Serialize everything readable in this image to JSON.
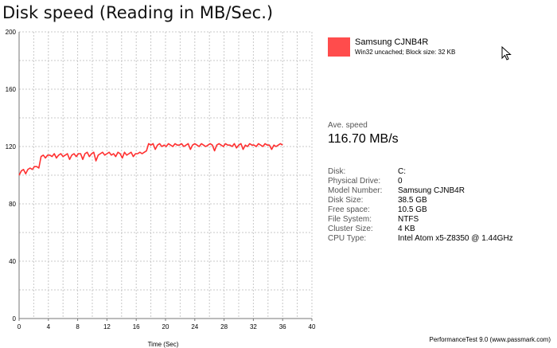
{
  "title": "Disk speed (Reading in MB/Sec.)",
  "legend": {
    "name": "Samsung CJNB4R",
    "description": "Win32 uncached; Block size: 32 KB",
    "color": "#ff4c4c"
  },
  "average": {
    "label": "Ave. speed",
    "value": "116.70 MB/s"
  },
  "info": [
    {
      "key": "Disk:",
      "value": "C:"
    },
    {
      "key": "Physical Drive:",
      "value": "0"
    },
    {
      "key": "Model Number:",
      "value": "Samsung CJNB4R"
    },
    {
      "key": "Disk Size:",
      "value": "38.5 GB"
    },
    {
      "key": "Free space:",
      "value": "10.5 GB"
    },
    {
      "key": "File System:",
      "value": "NTFS"
    },
    {
      "key": "Cluster Size:",
      "value": "4 KB"
    },
    {
      "key": "CPU Type:",
      "value": "Intel Atom x5-Z8350 @ 1.44GHz"
    }
  ],
  "footer": "PerformanceTest 9.0 (www.passmark.com)",
  "chart_data": {
    "type": "line",
    "xlabel": "Time (Sec)",
    "ylabel": "",
    "xlim": [
      0,
      40
    ],
    "ylim": [
      0,
      200
    ],
    "xticks": [
      0,
      2,
      4,
      6,
      8,
      10,
      12,
      14,
      16,
      18,
      20,
      22,
      24,
      26,
      28,
      30,
      32,
      34,
      36,
      38,
      40
    ],
    "xticklabels": [
      "0",
      "4",
      "8",
      "12",
      "16",
      "20",
      "24",
      "28",
      "32",
      "36",
      "40"
    ],
    "yticks": [
      0,
      20,
      40,
      60,
      80,
      100,
      120,
      140,
      160,
      180,
      200
    ],
    "yticklabels": [
      "0",
      "40",
      "80",
      "120",
      "160",
      "200"
    ],
    "grid": true,
    "series": [
      {
        "name": "Samsung CJNB4R",
        "color": "#ff3030",
        "x": [
          0,
          0.3,
          0.6,
          0.9,
          1.2,
          1.5,
          1.8,
          2.1,
          2.4,
          2.7,
          3.0,
          3.3,
          3.6,
          3.9,
          4.2,
          4.5,
          4.8,
          5.1,
          5.4,
          5.7,
          6.0,
          6.3,
          6.6,
          6.9,
          7.2,
          7.5,
          7.8,
          8.1,
          8.4,
          8.7,
          9.0,
          9.3,
          9.6,
          9.9,
          10.2,
          10.5,
          10.8,
          11.1,
          11.4,
          11.7,
          12.0,
          12.3,
          12.6,
          12.9,
          13.2,
          13.5,
          13.8,
          14.1,
          14.4,
          14.7,
          15.0,
          15.3,
          15.6,
          15.9,
          16.2,
          16.5,
          16.8,
          17.1,
          17.4,
          17.7,
          18.0,
          18.3,
          18.6,
          18.9,
          19.2,
          19.5,
          19.8,
          20.1,
          20.4,
          20.7,
          21.0,
          21.3,
          21.6,
          21.9,
          22.2,
          22.5,
          22.8,
          23.1,
          23.4,
          23.7,
          24.0,
          24.3,
          24.6,
          24.9,
          25.2,
          25.5,
          25.8,
          26.1,
          26.4,
          26.7,
          27.0,
          27.3,
          27.6,
          27.9,
          28.2,
          28.5,
          28.8,
          29.1,
          29.4,
          29.7,
          30.0,
          30.3,
          30.6,
          30.9,
          31.2,
          31.5,
          31.8,
          32.1,
          32.4,
          32.7,
          33.0,
          33.3,
          33.6,
          33.9,
          34.2,
          34.5,
          34.8,
          35.1,
          35.4,
          35.7,
          36.0
        ],
        "y": [
          100,
          103,
          104,
          101,
          104,
          105,
          104,
          106,
          106,
          105,
          113,
          114,
          112,
          114,
          114,
          113,
          115,
          112,
          114,
          115,
          113,
          114,
          115,
          111,
          114,
          115,
          113,
          115,
          115,
          111,
          115,
          116,
          113,
          115,
          116,
          110,
          114,
          115,
          116,
          114,
          115,
          116,
          114,
          115,
          113,
          116,
          115,
          112,
          116,
          114,
          115,
          116,
          113,
          115,
          115,
          116,
          115,
          116,
          117,
          122,
          121,
          122,
          118,
          121,
          122,
          120,
          121,
          120,
          122,
          121,
          120,
          122,
          121,
          121,
          122,
          120,
          121,
          122,
          118,
          121,
          122,
          121,
          120,
          122,
          121,
          120,
          121,
          122,
          121,
          117,
          121,
          122,
          121,
          120,
          122,
          121,
          121,
          120,
          122,
          119,
          121,
          122,
          118,
          121,
          120,
          122,
          121,
          121,
          120,
          122,
          121,
          120,
          122,
          121,
          121,
          118,
          121,
          120,
          121,
          122,
          121
        ]
      }
    ]
  }
}
